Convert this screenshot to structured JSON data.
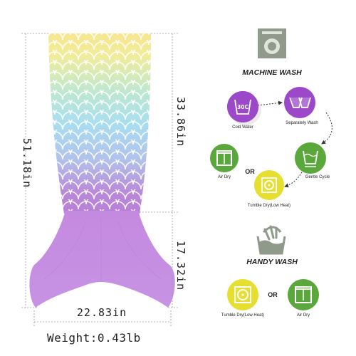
{
  "dimensions": {
    "total_length": "51.18in",
    "upper_length": "33.86in",
    "lower_length": "17.32in",
    "width": "22.83in"
  },
  "weight": "Weight:0.43lb",
  "care": {
    "machine_wash_title": "MACHINE WASH",
    "handy_wash_title": "HANDY WASH",
    "or_label": "OR",
    "steps": {
      "cold_water": "Cold Water",
      "separately_wash": "Separately Wash",
      "gentle_cycle": "Gentle Cycle",
      "air_dry": "Air Dry",
      "tumble_dry": "Tumble Dry(Low Heat)",
      "hw_tumble_dry": "Tumble Dry(Low Heat)",
      "hw_air_dry": "Air Dry"
    },
    "icon_text": "30C"
  },
  "colors": {
    "tail_yellow": "#f6e48e",
    "tail_blue": "#aee1ec",
    "tail_purple": "#b586d8",
    "fin_purple": "#c48be0",
    "purple_circle": "#9c45c8",
    "green_circle": "#5aa83c",
    "yellow_circle": "#e7df2f"
  }
}
